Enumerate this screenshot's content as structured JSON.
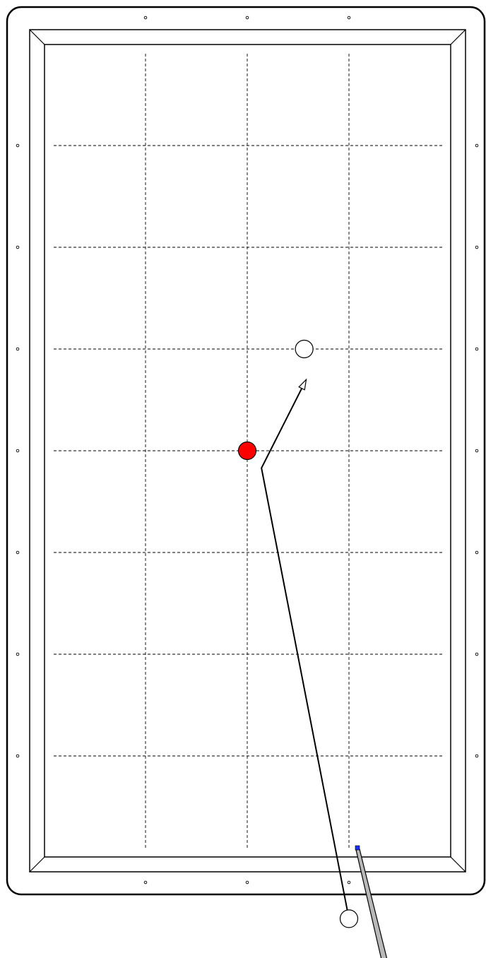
{
  "diagram": {
    "type": "three-cushion-billiards-shot",
    "grid": {
      "columns": 4,
      "rows": 8,
      "style": "dashed"
    },
    "colors": {
      "frame": "#000000",
      "grid": "#000000",
      "object_ball": "#ff0000",
      "cue_ball": "#ffffff",
      "other_ball": "#ffffff",
      "cue_shaft": "#b8b8b8",
      "cue_tip": "#1a2fff"
    },
    "balls": [
      {
        "name": "cue-ball",
        "color": "white",
        "grid_col": 2.0,
        "grid_row": 7.6
      },
      {
        "name": "red-ball",
        "color": "red",
        "grid_col": 1.0,
        "grid_row": 3.0
      },
      {
        "name": "white-ball-target",
        "color": "white",
        "grid_col": 1.56,
        "grid_row": 2.0
      }
    ],
    "path": {
      "points_grid": [
        [
          2.0,
          7.6
        ],
        [
          1.14,
          3.17
        ],
        [
          1.58,
          2.3
        ]
      ],
      "ends_with_arrow": true
    },
    "cue_stick": {
      "shown": true
    },
    "diamonds": {
      "long_rail_each": 7,
      "short_rail_each": 3
    }
  }
}
